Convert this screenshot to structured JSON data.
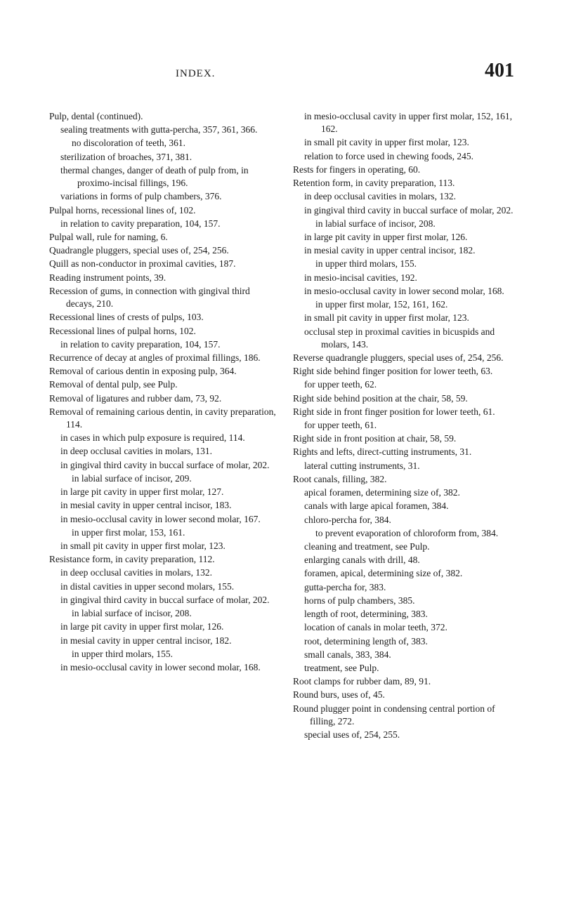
{
  "header": {
    "title": "INDEX.",
    "page_number": "401"
  },
  "left": {
    "entries": [
      {
        "level": 0,
        "text": "Pulp, dental (continued)."
      },
      {
        "level": 1,
        "text": "sealing treatments with gutta-percha, 357, 361, 366."
      },
      {
        "level": 2,
        "text": "no discoloration of teeth, 361."
      },
      {
        "level": 1,
        "text": "sterilization of broaches, 371, 381."
      },
      {
        "level": 1,
        "text": "thermal changes, danger of death of pulp from, in proximo-incisal fillings, 196."
      },
      {
        "level": 1,
        "text": "variations in forms of pulp chambers, 376."
      },
      {
        "level": 0,
        "text": "Pulpal horns, recessional lines of, 102."
      },
      {
        "level": 1,
        "text": "in relation to cavity preparation, 104, 157."
      },
      {
        "level": 0,
        "text": "Pulpal wall, rule for naming, 6."
      },
      {
        "level": 0,
        "text": "Quadrangle pluggers, special uses of, 254, 256."
      },
      {
        "level": 0,
        "text": "Quill as non-conductor in proximal cavities, 187."
      },
      {
        "level": 0,
        "text": "Reading instrument points, 39."
      },
      {
        "level": 0,
        "text": "Recession of gums, in connection with gingival third decays, 210."
      },
      {
        "level": 0,
        "text": "Recessional lines of crests of pulps, 103."
      },
      {
        "level": 0,
        "text": "Recessional lines of pulpal horns, 102."
      },
      {
        "level": 1,
        "text": "in relation to cavity preparation, 104, 157."
      },
      {
        "level": 0,
        "text": "Recurrence of decay at angles of proximal fillings, 186."
      },
      {
        "level": 0,
        "text": "Removal of carious dentin in exposing pulp, 364."
      },
      {
        "level": 0,
        "text": "Removal of dental pulp, see Pulp."
      },
      {
        "level": 0,
        "text": "Removal of ligatures and rubber dam, 73, 92."
      },
      {
        "level": 0,
        "text": "Removal of remaining carious dentin, in cavity preparation, 114."
      },
      {
        "level": 1,
        "text": "in cases in which pulp exposure is required, 114."
      },
      {
        "level": 1,
        "text": "in deep occlusal cavities in molars, 131."
      },
      {
        "level": 1,
        "text": "in gingival third cavity in buccal surface of molar, 202."
      },
      {
        "level": 2,
        "text": "in labial surface of incisor, 209."
      },
      {
        "level": 1,
        "text": "in large pit cavity in upper first molar, 127."
      },
      {
        "level": 1,
        "text": "in mesial cavity in upper central incisor, 183."
      },
      {
        "level": 1,
        "text": "in mesio-occlusal cavity in lower second molar, 167."
      },
      {
        "level": 2,
        "text": "in upper first molar, 153, 161."
      },
      {
        "level": 1,
        "text": "in small pit cavity in upper first molar, 123."
      },
      {
        "level": 0,
        "text": "Resistance form, in cavity preparation, 112."
      },
      {
        "level": 1,
        "text": "in deep occlusal cavities in molars, 132."
      },
      {
        "level": 1,
        "text": "in distal cavities in upper second molars, 155."
      },
      {
        "level": 1,
        "text": "in gingival third cavity in buccal surface of molar, 202."
      },
      {
        "level": 2,
        "text": "in labial surface of incisor, 208."
      },
      {
        "level": 1,
        "text": "in large pit cavity in upper first molar, 126."
      },
      {
        "level": 1,
        "text": "in mesial cavity in upper central incisor, 182."
      },
      {
        "level": 2,
        "text": "in upper third molars, 155."
      },
      {
        "level": 1,
        "text": "in mesio-occlusal cavity in lower second molar, 168."
      }
    ]
  },
  "right": {
    "entries": [
      {
        "level": 1,
        "text": "in mesio-occlusal cavity in upper first molar, 152, 161, 162."
      },
      {
        "level": 1,
        "text": "in small pit cavity in upper first molar, 123."
      },
      {
        "level": 1,
        "text": "relation to force used in chewing foods, 245."
      },
      {
        "level": 0,
        "text": "Rests for fingers in operating, 60."
      },
      {
        "level": 0,
        "text": "Retention form, in cavity preparation, 113."
      },
      {
        "level": 1,
        "text": "in deep occlusal cavities in molars, 132."
      },
      {
        "level": 1,
        "text": "in gingival third cavity in buccal surface of molar, 202."
      },
      {
        "level": 2,
        "text": "in labial surface of incisor, 208."
      },
      {
        "level": 1,
        "text": "in large pit cavity in upper first molar, 126."
      },
      {
        "level": 1,
        "text": "in mesial cavity in upper central incisor, 182."
      },
      {
        "level": 2,
        "text": "in upper third molars, 155."
      },
      {
        "level": 1,
        "text": "in mesio-incisal cavities, 192."
      },
      {
        "level": 1,
        "text": "in mesio-occlusal cavity in lower second molar, 168."
      },
      {
        "level": 2,
        "text": "in upper first molar, 152, 161, 162."
      },
      {
        "level": 1,
        "text": "in small pit cavity in upper first molar, 123."
      },
      {
        "level": 1,
        "text": "occlusal step in proximal cavities in bicuspids and molars, 143."
      },
      {
        "level": 0,
        "text": "Reverse quadrangle pluggers, special uses of, 254, 256."
      },
      {
        "level": 0,
        "text": "Right side behind finger position for lower teeth, 63."
      },
      {
        "level": 1,
        "text": "for upper teeth, 62."
      },
      {
        "level": 0,
        "text": "Right side behind position at the chair, 58, 59."
      },
      {
        "level": 0,
        "text": "Right side in front finger position for lower teeth, 61."
      },
      {
        "level": 1,
        "text": "for upper teeth, 61."
      },
      {
        "level": 0,
        "text": "Right side in front position at chair, 58, 59."
      },
      {
        "level": 0,
        "text": "Rights and lefts, direct-cutting instruments, 31."
      },
      {
        "level": 1,
        "text": "lateral cutting instruments, 31."
      },
      {
        "level": 0,
        "text": "Root canals, filling, 382."
      },
      {
        "level": 1,
        "text": "apical foramen, determining size of, 382."
      },
      {
        "level": 1,
        "text": "canals with large apical foramen, 384."
      },
      {
        "level": 1,
        "text": "chloro-percha for, 384."
      },
      {
        "level": 2,
        "text": "to prevent evaporation of chloroform from, 384."
      },
      {
        "level": 1,
        "text": "cleaning and treatment, see Pulp."
      },
      {
        "level": 1,
        "text": "enlarging canals with drill, 48."
      },
      {
        "level": 1,
        "text": "foramen, apical, determining size of, 382."
      },
      {
        "level": 1,
        "text": "gutta-percha for, 383."
      },
      {
        "level": 1,
        "text": "horns of pulp chambers, 385."
      },
      {
        "level": 1,
        "text": "length of root, determining, 383."
      },
      {
        "level": 1,
        "text": "location of canals in molar teeth, 372."
      },
      {
        "level": 1,
        "text": "root, determining length of, 383."
      },
      {
        "level": 1,
        "text": "small canals, 383, 384."
      },
      {
        "level": 1,
        "text": "treatment, see Pulp."
      },
      {
        "level": 0,
        "text": "Root clamps for rubber dam, 89, 91."
      },
      {
        "level": 0,
        "text": "Round burs, uses of, 45."
      },
      {
        "level": 0,
        "text": "Round plugger point in condensing central portion of filling, 272."
      },
      {
        "level": 1,
        "text": "special uses of, 254, 255."
      }
    ]
  }
}
